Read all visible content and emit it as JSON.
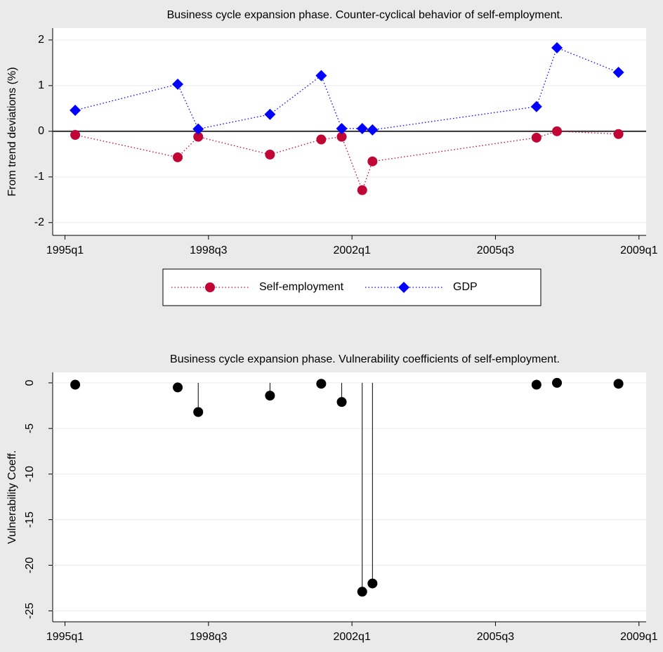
{
  "chart_data": [
    {
      "type": "line",
      "title": "Business cycle expansion phase. Counter-cyclical behavior of self-employment.",
      "y_label": "From trend deviations (%)",
      "x": [
        141,
        151,
        153,
        160,
        165,
        167,
        169,
        170,
        186,
        188,
        194
      ],
      "series": [
        {
          "name": "Self-employment",
          "color": "#c10534",
          "marker": "circle",
          "values": [
            -0.08,
            -0.57,
            -0.12,
            -0.51,
            -0.18,
            -0.12,
            -1.29,
            -0.66,
            -0.14,
            0.0,
            -0.06
          ]
        },
        {
          "name": "GDP",
          "color": "#0000ff",
          "marker": "diamond",
          "values": [
            0.46,
            1.03,
            0.05,
            0.37,
            1.22,
            0.06,
            0.06,
            0.03,
            0.54,
            1.83,
            1.29
          ]
        }
      ],
      "xlim": [
        138.8,
        196.7
      ],
      "xticks": [
        {
          "value": 140,
          "label": "1995q1"
        },
        {
          "value": 154,
          "label": "1998q3"
        },
        {
          "value": 168,
          "label": "2002q1"
        },
        {
          "value": 182,
          "label": "2005q3"
        },
        {
          "value": 196,
          "label": "2009q1"
        }
      ],
      "ylim": [
        -2.28,
        2.26
      ],
      "yticks": [
        2,
        1,
        0,
        -1,
        -2
      ],
      "reference_line": 0,
      "legend": "bottom"
    },
    {
      "type": "dropline",
      "title": "Business cycle expansion phase. Vulnerability coefficients of self-employment.",
      "y_label": "Vulnerability Coeff.",
      "x": [
        141,
        151,
        153,
        160,
        165,
        167,
        169,
        170,
        186,
        188,
        194
      ],
      "values": [
        -0.2,
        -0.5,
        -3.2,
        -1.4,
        -0.1,
        -2.1,
        -22.9,
        -22.0,
        -0.2,
        0.0,
        -0.1
      ],
      "color": "#000000",
      "xlim": [
        138.8,
        196.7
      ],
      "xticks": [
        {
          "value": 140,
          "label": "1995q1"
        },
        {
          "value": 154,
          "label": "1998q3"
        },
        {
          "value": 168,
          "label": "2002q1"
        },
        {
          "value": 182,
          "label": "2005q3"
        },
        {
          "value": 196,
          "label": "2009q1"
        }
      ],
      "ylim": [
        -26.2,
        1.15
      ],
      "yticks": [
        0,
        -5,
        -10,
        -15,
        -20,
        -25
      ]
    }
  ]
}
